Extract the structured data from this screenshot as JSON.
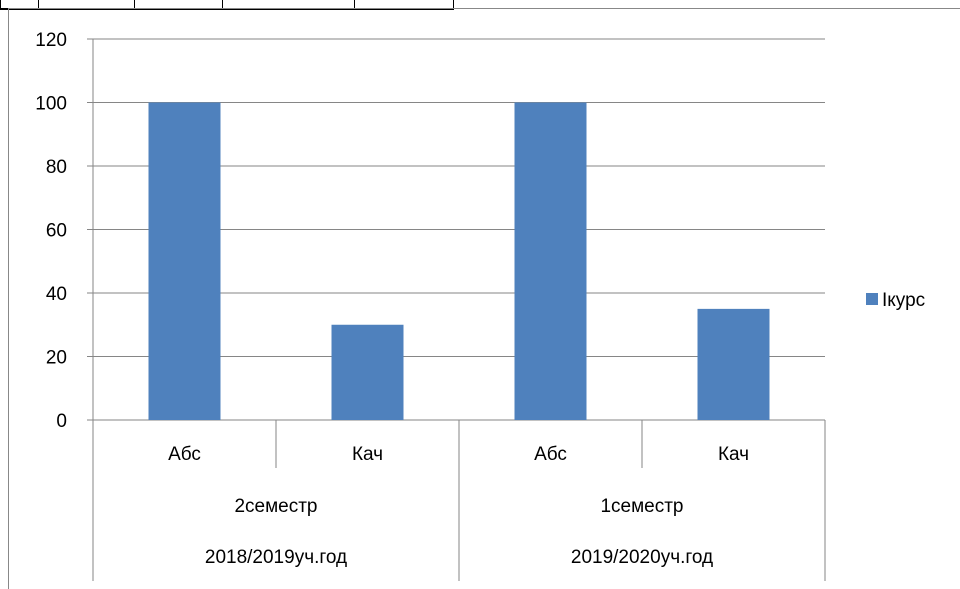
{
  "chart_data": {
    "type": "bar",
    "categories": [
      "Абс",
      "Кач",
      "Абс",
      "Кач"
    ],
    "groups_level1": [
      {
        "label": "2семестр",
        "span": [
          0,
          1
        ]
      },
      {
        "label": "1семестр",
        "span": [
          2,
          3
        ]
      }
    ],
    "groups_level2": [
      {
        "label": "2018/2019уч.год",
        "span": [
          0,
          1
        ]
      },
      {
        "label": "2019/2020уч.год",
        "span": [
          2,
          3
        ]
      }
    ],
    "series": [
      {
        "name": "Ікурс",
        "values": [
          100,
          30,
          100,
          35
        ],
        "color": "#4F81BD"
      }
    ],
    "ylim": [
      0,
      120
    ],
    "yticks": [
      0,
      20,
      40,
      60,
      80,
      100,
      120
    ],
    "grid": true,
    "legend": "right"
  }
}
